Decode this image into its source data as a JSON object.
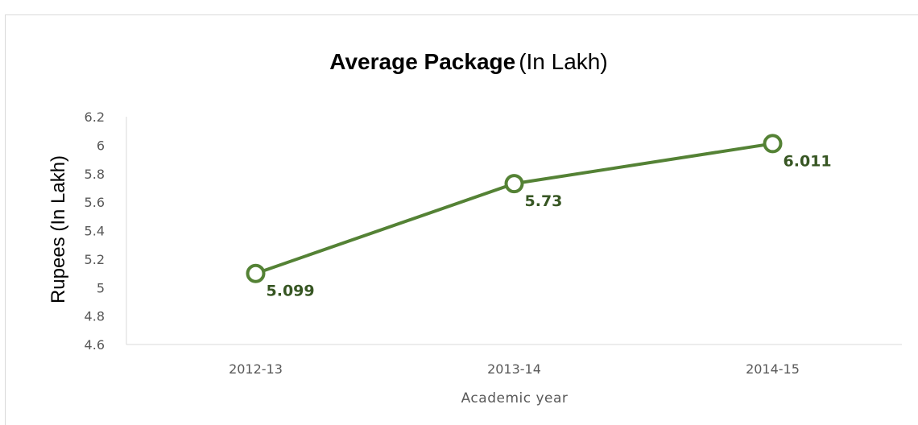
{
  "chart_data": {
    "type": "line",
    "title": "Average Package",
    "title_suffix": "(In Lakh)",
    "xlabel": "Academic year",
    "ylabel": "Rupees (In Lakh)",
    "categories": [
      "2012-13",
      "2013-14",
      "2014-15"
    ],
    "series": [
      {
        "values": [
          5.099,
          5.73,
          6.011
        ],
        "data_labels": [
          "5.099",
          "5.73",
          "6.011"
        ],
        "color": "#548235"
      }
    ],
    "ylim": [
      4.6,
      6.2
    ],
    "yticks": [
      4.6,
      4.8,
      5,
      5.2,
      5.4,
      5.6,
      5.8,
      6,
      6.2
    ],
    "ytick_labels": [
      "4.6",
      "4.8",
      "5",
      "5.2",
      "5.4",
      "5.6",
      "5.8",
      "6",
      "6.2"
    ],
    "grid": false,
    "legend": "none",
    "marker": "hollow-circle"
  }
}
